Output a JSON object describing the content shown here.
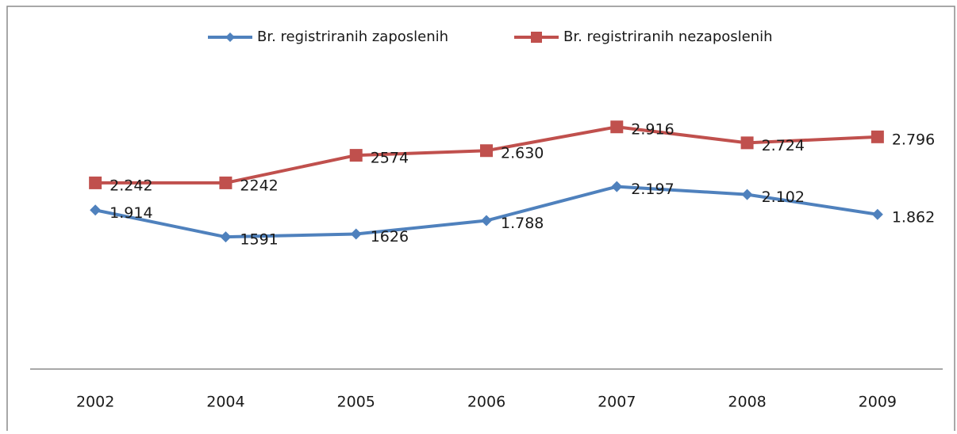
{
  "chart_data": {
    "type": "line",
    "categories": [
      "2002",
      "2004",
      "2005",
      "2006",
      "2007",
      "2008",
      "2009"
    ],
    "series": [
      {
        "name": "Br. registriranih zaposlenih",
        "color": "#4f81bd",
        "marker": "diamond",
        "values": [
          1914,
          1591,
          1626,
          1788,
          2197,
          2102,
          1862
        ],
        "value_labels": [
          "1.914",
          "1591",
          "1626",
          "1.788",
          "2.197",
          "2.102",
          "1.862"
        ]
      },
      {
        "name": "Br. registriranih nezaposlenih",
        "color": "#c0504d",
        "marker": "square",
        "values": [
          2242,
          2242,
          2574,
          2630,
          2916,
          2724,
          2796
        ],
        "value_labels": [
          "2.242",
          "2242",
          "2574",
          "2.630",
          "2.916",
          "2.724",
          "2.796"
        ]
      }
    ],
    "ylim": [
      0,
      3500
    ],
    "legend": "top"
  }
}
